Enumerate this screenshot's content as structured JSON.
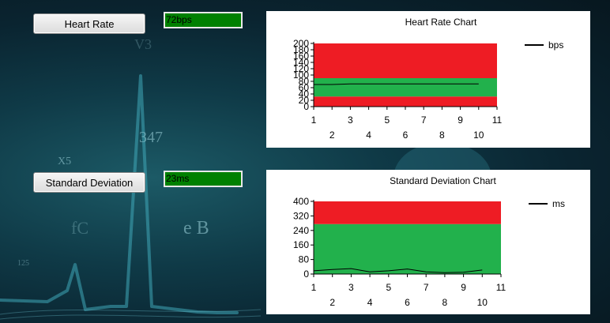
{
  "colors": {
    "panel": "#ffffff",
    "alarm_band": "#ee1c24",
    "normal_band": "#22b14c",
    "value_box": "#008000",
    "line": "#000000"
  },
  "heart_rate": {
    "button_label": "Heart Rate",
    "value_text": "72bps"
  },
  "std_dev": {
    "button_label": "Standard Deviation",
    "value_text": "23ms"
  },
  "chart_data": [
    {
      "type": "line",
      "title": "Heart Rate Chart",
      "xlabel": "",
      "ylabel": "",
      "xlim": [
        1,
        11
      ],
      "ylim": [
        0,
        200
      ],
      "x_ticks_row1": [
        1,
        3,
        5,
        7,
        9,
        11
      ],
      "x_ticks_row2": [
        2,
        4,
        6,
        8,
        10
      ],
      "y_ticks": [
        0,
        20,
        40,
        60,
        80,
        100,
        120,
        140,
        160,
        180,
        200
      ],
      "bands": [
        {
          "from": 0,
          "to": 32,
          "color": "#ee1c24"
        },
        {
          "from": 32,
          "to": 90,
          "color": "#22b14c"
        },
        {
          "from": 90,
          "to": 200,
          "color": "#ee1c24"
        }
      ],
      "series": [
        {
          "name": "bps",
          "x": [
            1,
            2,
            3,
            4,
            5,
            6,
            7,
            8,
            9,
            10
          ],
          "values": [
            70,
            70,
            72,
            72,
            72,
            72,
            72,
            72,
            72,
            72
          ]
        }
      ],
      "legend": "top-right",
      "grid": false
    },
    {
      "type": "line",
      "title": "Standard Deviation Chart",
      "xlabel": "",
      "ylabel": "",
      "xlim": [
        1,
        11
      ],
      "ylim": [
        0,
        400
      ],
      "x_ticks_row1": [
        1,
        3,
        5,
        7,
        9,
        11
      ],
      "x_ticks_row2": [
        2,
        4,
        6,
        8,
        10
      ],
      "y_ticks": [
        0,
        80,
        160,
        240,
        320,
        400
      ],
      "bands": [
        {
          "from": 0,
          "to": 275,
          "color": "#22b14c"
        },
        {
          "from": 275,
          "to": 400,
          "color": "#ee1c24"
        }
      ],
      "series": [
        {
          "name": "ms",
          "x": [
            1,
            2,
            3,
            4,
            5,
            6,
            7,
            8,
            9,
            10
          ],
          "values": [
            18,
            25,
            30,
            12,
            18,
            28,
            12,
            8,
            10,
            22
          ]
        }
      ],
      "legend": "top-right",
      "grid": false
    }
  ]
}
